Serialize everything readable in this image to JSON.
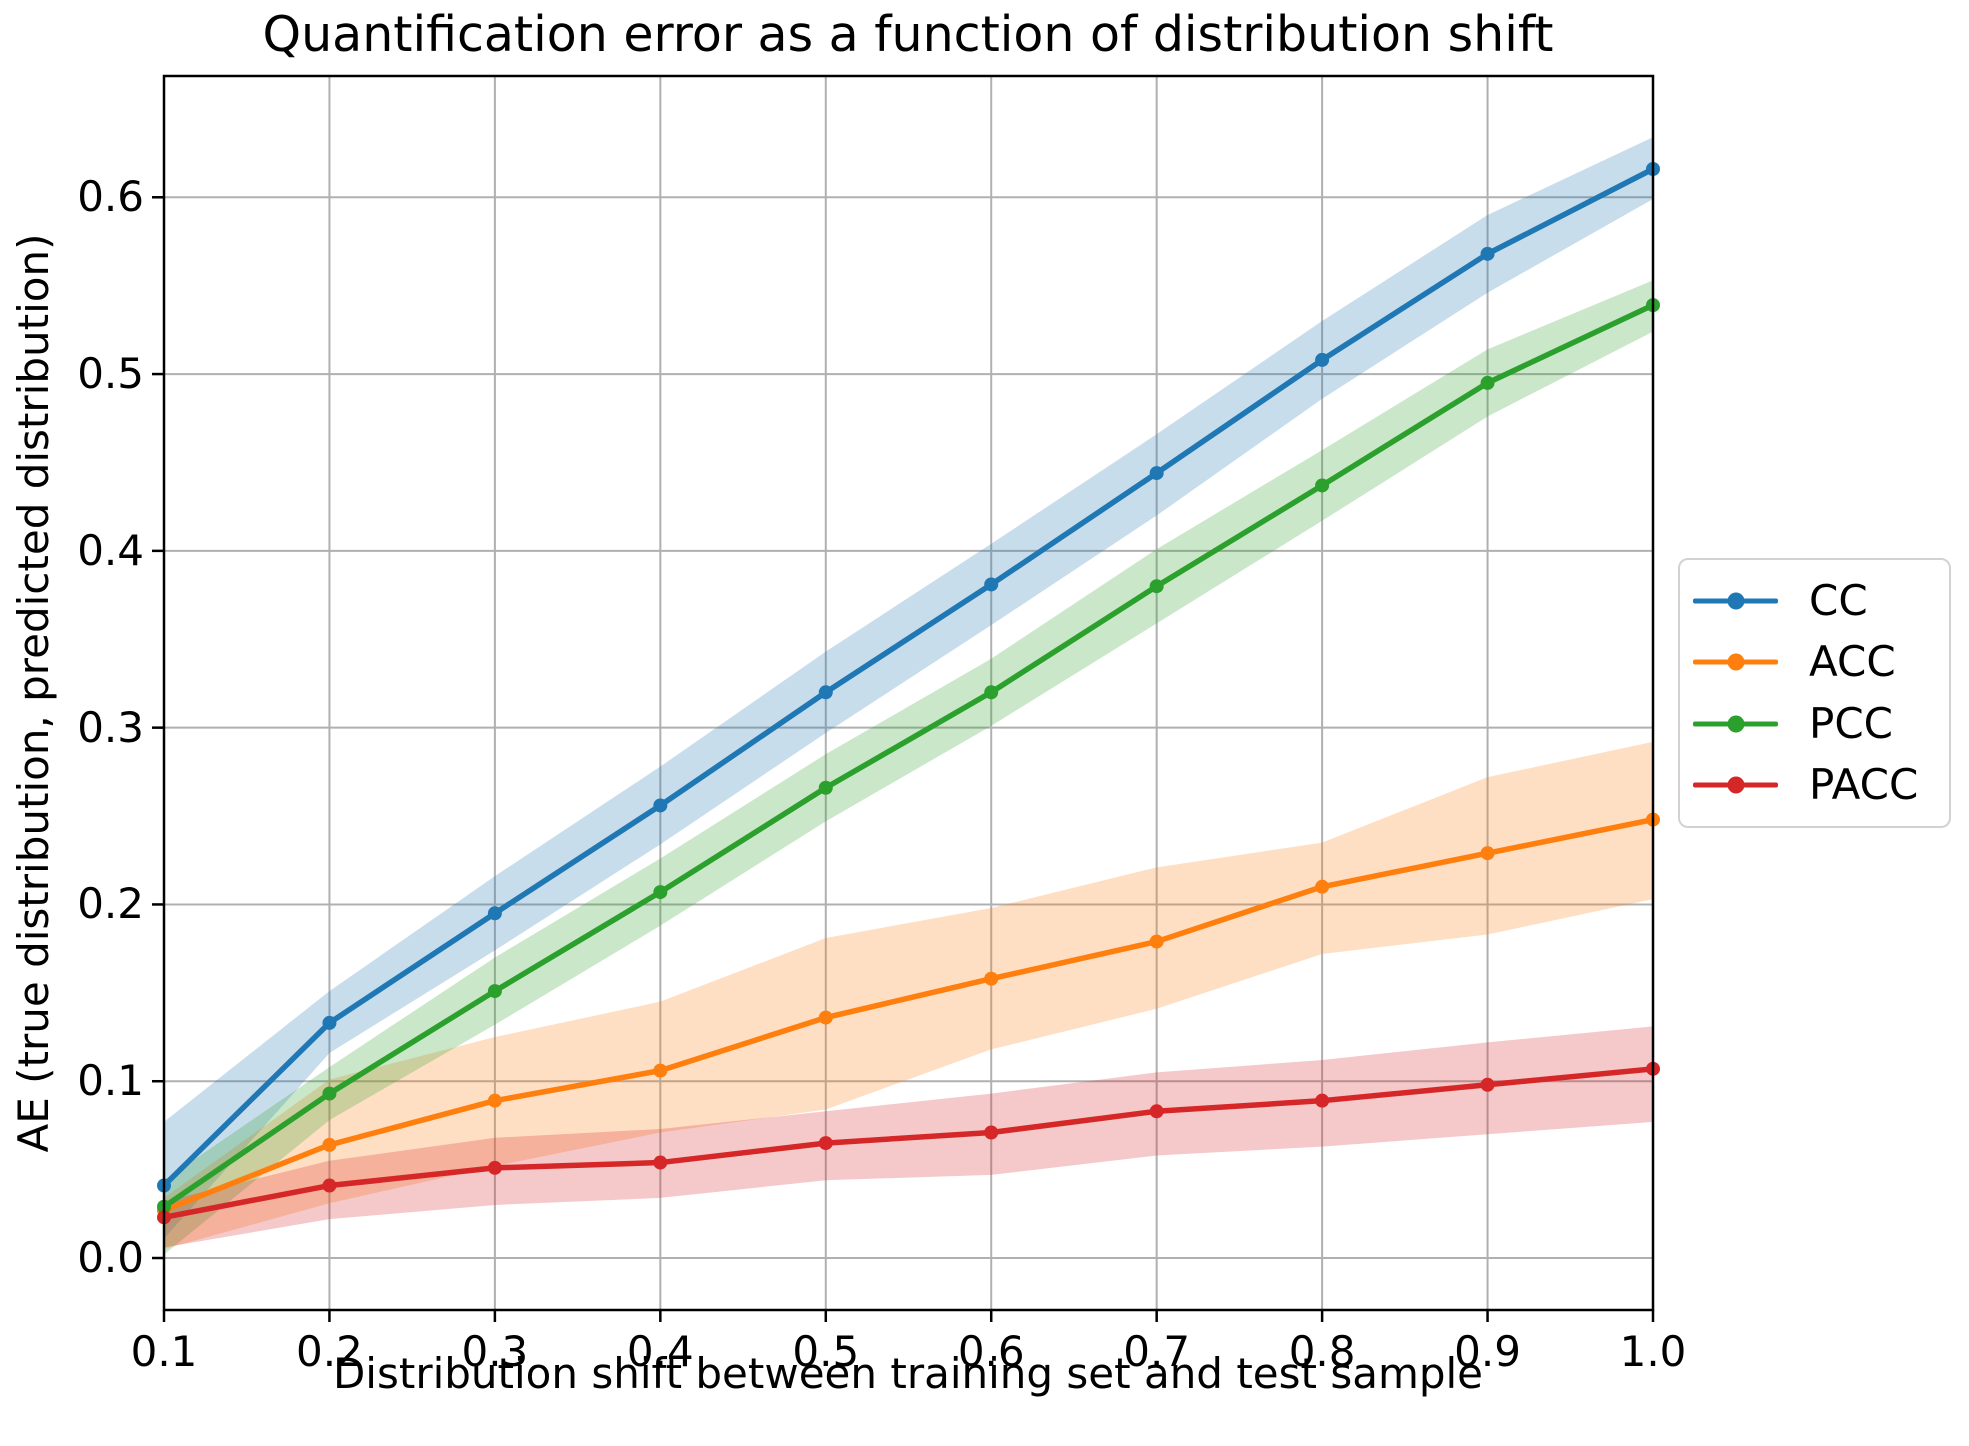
{
  "chart_data": {
    "type": "line",
    "title": "Quantification error as a function of distribution shift",
    "xlabel": "Distribution shift between training set and test sample",
    "ylabel": "AE (true distribution, predicted distribution)",
    "x": [
      0.1,
      0.2,
      0.3,
      0.4,
      0.5,
      0.6,
      0.7,
      0.8,
      0.9,
      1.0
    ],
    "xticks": [
      "0.1",
      "0.2",
      "0.3",
      "0.4",
      "0.5",
      "0.6",
      "0.7",
      "0.8",
      "0.9",
      "1.0"
    ],
    "yticks": [
      "0.0",
      "0.1",
      "0.2",
      "0.3",
      "0.4",
      "0.5",
      "0.6"
    ],
    "xlim": [
      0.1,
      1.0
    ],
    "ylim": [
      -0.0294,
      0.6686
    ],
    "grid": true,
    "grid_color": "#b0b0b0",
    "legend_position": "outside-right",
    "band_alpha": 0.25,
    "marker": "circle",
    "series": [
      {
        "name": "CC",
        "color": "#1f77b4",
        "values": [
          0.041,
          0.133,
          0.195,
          0.256,
          0.32,
          0.381,
          0.444,
          0.508,
          0.568,
          0.616
        ],
        "band_lower": [
          0.011,
          0.116,
          0.174,
          0.234,
          0.297,
          0.358,
          0.42,
          0.486,
          0.546,
          0.599
        ],
        "band_upper": [
          0.077,
          0.151,
          0.216,
          0.278,
          0.343,
          0.404,
          0.466,
          0.53,
          0.59,
          0.634
        ]
      },
      {
        "name": "ACC",
        "color": "#ff7f0e",
        "values": [
          0.027,
          0.064,
          0.089,
          0.106,
          0.136,
          0.158,
          0.179,
          0.21,
          0.229,
          0.248
        ],
        "band_lower": [
          0.005,
          0.031,
          0.052,
          0.071,
          0.084,
          0.118,
          0.141,
          0.172,
          0.183,
          0.203
        ],
        "band_upper": [
          0.034,
          0.101,
          0.125,
          0.145,
          0.181,
          0.198,
          0.221,
          0.235,
          0.272,
          0.292
        ]
      },
      {
        "name": "PCC",
        "color": "#2ca02c",
        "values": [
          0.029,
          0.093,
          0.151,
          0.207,
          0.266,
          0.32,
          0.38,
          0.437,
          0.495,
          0.539
        ],
        "band_lower": [
          0.002,
          0.078,
          0.132,
          0.188,
          0.247,
          0.301,
          0.359,
          0.417,
          0.476,
          0.524
        ],
        "band_upper": [
          0.044,
          0.108,
          0.17,
          0.226,
          0.285,
          0.339,
          0.401,
          0.457,
          0.514,
          0.553
        ]
      },
      {
        "name": "PACC",
        "color": "#d62728",
        "values": [
          0.023,
          0.041,
          0.051,
          0.054,
          0.065,
          0.071,
          0.083,
          0.089,
          0.098,
          0.107
        ],
        "band_lower": [
          0.006,
          0.022,
          0.03,
          0.034,
          0.044,
          0.047,
          0.058,
          0.063,
          0.07,
          0.077
        ],
        "band_upper": [
          0.032,
          0.055,
          0.068,
          0.073,
          0.083,
          0.093,
          0.105,
          0.112,
          0.122,
          0.131
        ]
      }
    ]
  }
}
